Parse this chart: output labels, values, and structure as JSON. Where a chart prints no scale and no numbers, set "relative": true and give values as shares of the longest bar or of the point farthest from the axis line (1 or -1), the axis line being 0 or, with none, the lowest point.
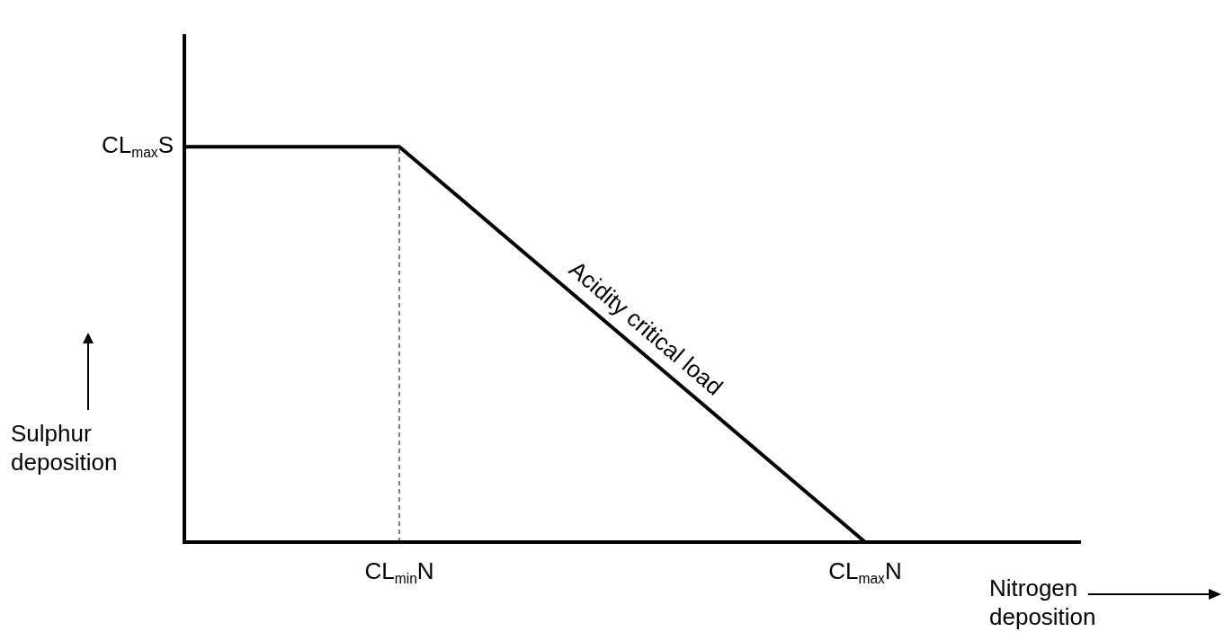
{
  "chart_data": {
    "type": "line",
    "relative": true,
    "xlabel": "Nitrogen deposition",
    "ylabel": "Sulphur deposition",
    "categories": [
      null,
      null,
      null,
      null,
      null,
      null,
      "CL$_{min}$N",
      null,
      null,
      null,
      null,
      null,
      null,
      null,
      null,
      null,
      null,
      null,
      null,
      "CL$_{max}$N",
      null,
      null,
      null,
      null,
      null,
      null
    ],
    "legend": false,
    "marker": "none",
    "series": [
      {
        "color": "#000000",
        "values": [
          1,
          null,
          null,
          null,
          null,
          null,
          1,
          null,
          null,
          null,
          null,
          null,
          null,
          null,
          null,
          null,
          null,
          null,
          null,
          0,
          null,
          null,
          null,
          null,
          null,
          null
        ]
      }
    ],
    "ref_lines": [
      {
        "axis": "x",
        "value": "CL$_{min}$N",
        "color": "#000000",
        "line_style": "dashed"
      }
    ],
    "annotations": [
      "CL$_{max}$S",
      "Acidity critical load"
    ]
  }
}
